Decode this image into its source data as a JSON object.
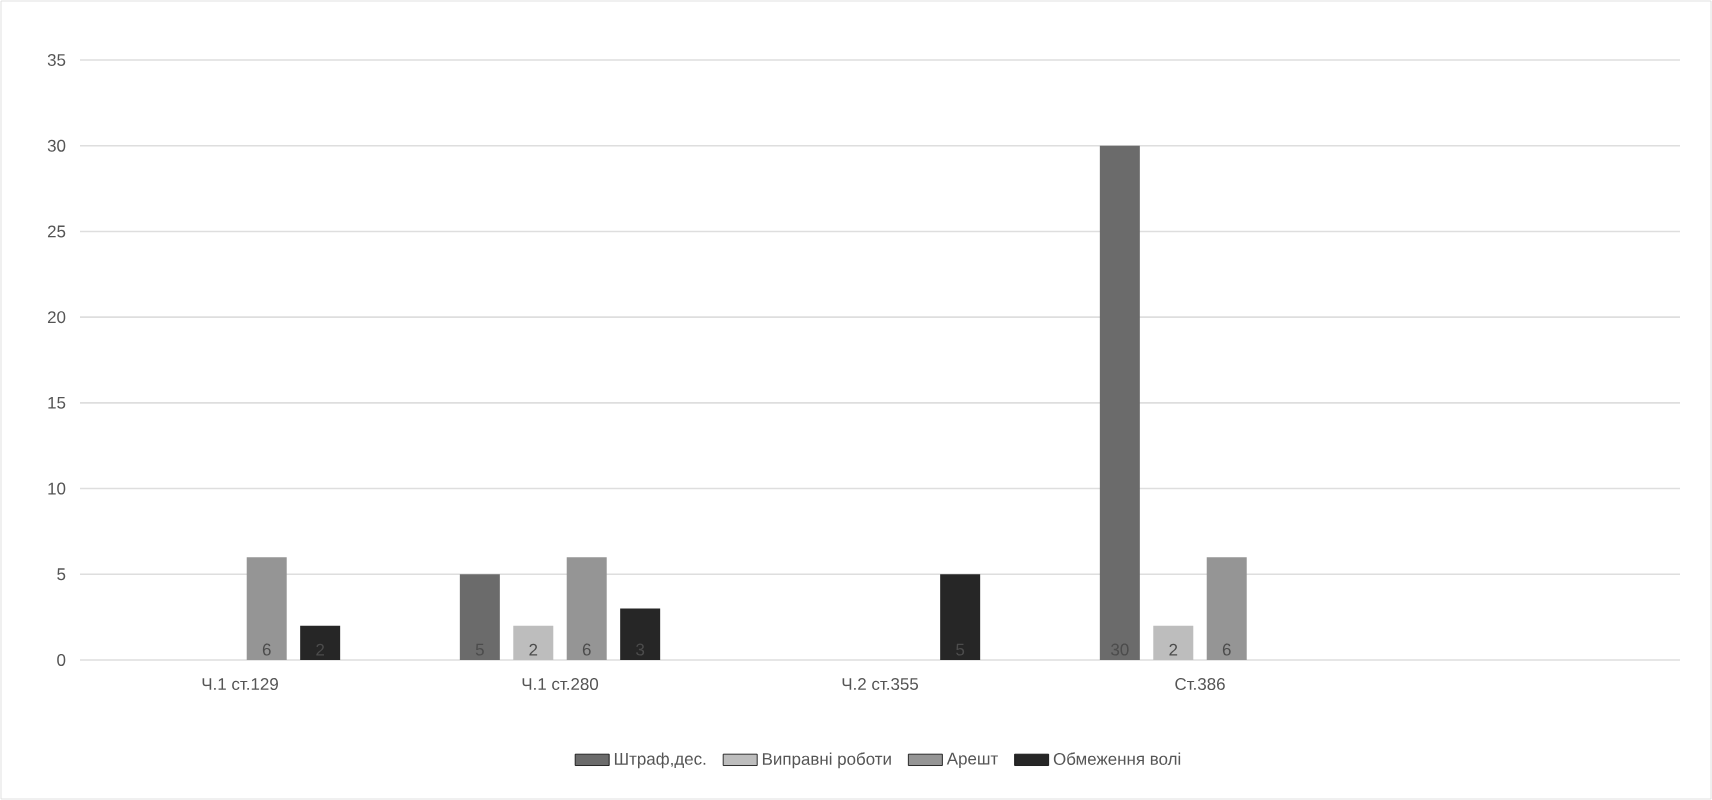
{
  "chart_data": {
    "type": "bar",
    "categories": [
      "Ч.1 ст.129",
      "Ч.1 ст.280",
      "Ч.2 ст.355",
      "Ст.386",
      null
    ],
    "series": [
      {
        "name": "Штраф,дес.",
        "color": "#6b6b6b",
        "values": [
          null,
          5,
          null,
          30,
          null
        ]
      },
      {
        "name": "Виправні роботи",
        "color": "#bdbdbd",
        "values": [
          null,
          2,
          null,
          2,
          null
        ]
      },
      {
        "name": "Арешт",
        "color": "#959595",
        "values": [
          6,
          6,
          null,
          6,
          null
        ]
      },
      {
        "name": "Обмеження волі",
        "color": "#262626",
        "values": [
          2,
          3,
          5,
          null,
          null
        ]
      }
    ],
    "ylim": [
      0,
      35
    ],
    "yticks": [
      0,
      5,
      10,
      15,
      20,
      25,
      30,
      35
    ],
    "grid": "y",
    "legend": "bottom",
    "data_labels": true
  }
}
